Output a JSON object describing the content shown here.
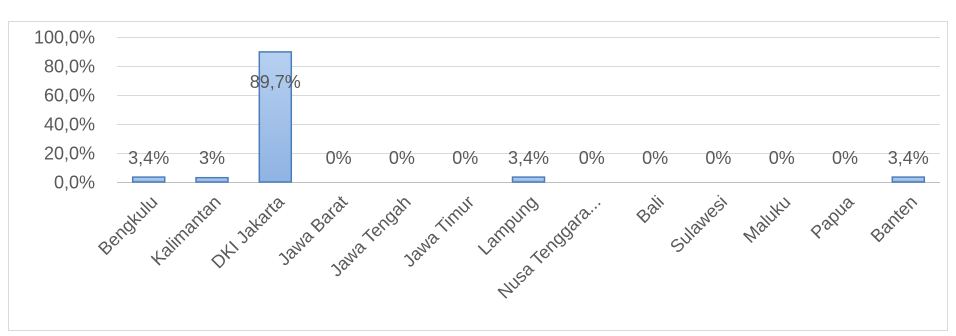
{
  "chart_data": {
    "type": "bar",
    "categories": [
      "Bengkulu",
      "Kalimantan",
      "DKI Jakarta",
      "Jawa Barat",
      "Jawa Tengah",
      "Jawa Timur",
      "Lampung",
      "Nusa Tenggara...",
      "Bali",
      "Sulawesi",
      "Maluku",
      "Papua",
      "Banten"
    ],
    "values": [
      3.4,
      3,
      89.7,
      0,
      0,
      0,
      3.4,
      0,
      0,
      0,
      0,
      0,
      3.4
    ],
    "data_labels": [
      "3,4%",
      "3%",
      "89,7%",
      "0%",
      "0%",
      "0%",
      "3,4%",
      "0%",
      "0%",
      "0%",
      "0%",
      "0%",
      "3,4%"
    ],
    "yticks": [
      0,
      20,
      40,
      60,
      80,
      100
    ],
    "ytick_labels": [
      "0,0%",
      "20,0%",
      "40,0%",
      "60,0%",
      "80,0%",
      "100,0%"
    ],
    "ylim": [
      0,
      100
    ],
    "grid": true,
    "legend": "none",
    "colors": {
      "bar_fill_top": "#b7d0f0",
      "bar_fill_bottom": "#8fb3e3",
      "bar_stroke": "#4a7ebb",
      "grid": "#d9d9d9",
      "axis": "#bfbfbf",
      "text": "#595959",
      "frame": "#d9d9d9"
    }
  }
}
